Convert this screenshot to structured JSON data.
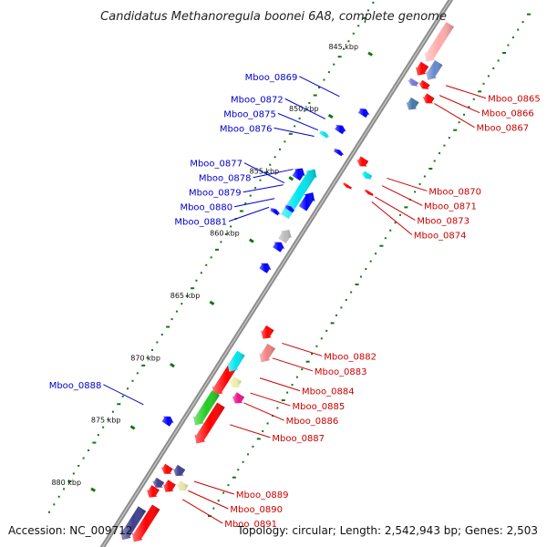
{
  "title": "Candidatus Methanoregula boonei 6A8, complete genome",
  "footer": {
    "accession": "Accession: NC_009712",
    "topology": "Topology: circular; Length: 2,542,943 bp; Genes: 2,503"
  },
  "colors": {
    "forward_label": "#cc0000",
    "reverse_label": "#0000cc",
    "backbone": "#8c8c8c",
    "gc_dots": "#117711"
  },
  "ruler": [
    {
      "label": "845 kbp",
      "kbp": 845
    },
    {
      "label": "850 kbp",
      "kbp": 850
    },
    {
      "label": "855 kbp",
      "kbp": 855
    },
    {
      "label": "860 kbp",
      "kbp": 860
    },
    {
      "label": "865 kbp",
      "kbp": 865
    },
    {
      "label": "870 kbp",
      "kbp": 870
    },
    {
      "label": "875 kbp",
      "kbp": 875
    },
    {
      "label": "880 kbp",
      "kbp": 880
    }
  ],
  "forward_genes": [
    {
      "name": "Mboo_0865",
      "start": 843.6,
      "end": 844.5,
      "color": "#ff0000"
    },
    {
      "name": "Mboo_0866",
      "start": 844.6,
      "end": 845.1,
      "color": "#ff0000"
    },
    {
      "name": "Mboo_0867",
      "start": 845.2,
      "end": 845.8,
      "color": "#ff0000"
    },
    {
      "name": "Mboo_0870",
      "start": 851.2,
      "end": 851.8,
      "color": "#ff0000"
    },
    {
      "name": "Mboo_0871",
      "start": 851.9,
      "end": 852.3,
      "color": "#00e5ee"
    },
    {
      "name": "Mboo_0873",
      "start": 852.9,
      "end": 853.1,
      "color": "#ff0000"
    },
    {
      "name": "Mboo_0874",
      "start": 853.3,
      "end": 853.5,
      "color": "#ff0000"
    },
    {
      "name": "Mboo_0882",
      "start": 864.3,
      "end": 865.2,
      "color": "#ff0000"
    },
    {
      "name": "Mboo_0883",
      "start": 865.3,
      "end": 866.6,
      "color": "#f08080"
    },
    {
      "name": "Mboo_0884",
      "start": 866.8,
      "end": 868.3,
      "color": "#00e5ee"
    },
    {
      "name": "Mboo_0885",
      "start": 868.4,
      "end": 869.1,
      "color": "#eeeeaa"
    },
    {
      "name": "Mboo_0886",
      "start": 869.2,
      "end": 869.9,
      "color": "#ee1289"
    },
    {
      "name": "Mboo_0887",
      "start": 870.0,
      "end": 872.6,
      "color": "#22cc22"
    },
    {
      "name": "Mboo_0889",
      "start": 875.5,
      "end": 876.2,
      "color": "#3e3e8e"
    },
    {
      "name": "Mboo_0890",
      "start": 876.3,
      "end": 876.9,
      "color": "#e6e6aa"
    },
    {
      "name": "Mboo_0891",
      "start": 877.0,
      "end": 877.6,
      "color": "#3e3e8e"
    }
  ],
  "reverse_genes": [
    {
      "name": "Mboo_0869",
      "start": 848.3,
      "end": 848.8,
      "color": "#0000ff"
    },
    {
      "name": "Mboo_0872",
      "start": 850.1,
      "end": 850.6,
      "color": "#0000ff"
    },
    {
      "name": "Mboo_0875",
      "start": 851.1,
      "end": 851.4,
      "color": "#00e5ee"
    },
    {
      "name": "Mboo_0876",
      "start": 851.6,
      "end": 851.9,
      "color": "#0000ff"
    },
    {
      "name": "Mboo_0877",
      "start": 853.6,
      "end": 857.4,
      "color": "#00e5ee"
    },
    {
      "name": "Mboo_0878",
      "start": 854.0,
      "end": 854.8,
      "color": "#0000ff"
    },
    {
      "name": "Mboo_0879",
      "start": 855.0,
      "end": 856.3,
      "color": "#0000ff"
    },
    {
      "name": "Mboo_0880",
      "start": 856.6,
      "end": 856.9,
      "color": "#0000ff"
    },
    {
      "name": "Mboo_0881",
      "start": 857.3,
      "end": 857.6,
      "color": "#0000ff"
    },
    {
      "name": "Mboo_0888",
      "start": 873.0,
      "end": 873.6,
      "color": "#0000ff"
    }
  ],
  "unlabeled_features": [
    {
      "strand": "forward",
      "start": 840.4,
      "end": 843.4,
      "color": "#ffaaaa"
    },
    {
      "strand": "forward",
      "start": 843.0,
      "end": 844.4,
      "color": "#6688cc"
    },
    {
      "strand": "forward",
      "start": 844.9,
      "end": 845.3,
      "color": "#7777dd"
    },
    {
      "strand": "forward",
      "start": 846.0,
      "end": 846.8,
      "color": "#4477aa"
    },
    {
      "strand": "forward",
      "start": 867.2,
      "end": 870.2,
      "color": "#ff0000"
    },
    {
      "strand": "forward",
      "start": 870.5,
      "end": 873.6,
      "color": "#ff0000"
    },
    {
      "strand": "forward",
      "start": 875.9,
      "end": 876.5,
      "color": "#ff0000"
    },
    {
      "strand": "forward",
      "start": 876.7,
      "end": 877.5,
      "color": "#ff0000"
    },
    {
      "strand": "forward",
      "start": 877.6,
      "end": 878.4,
      "color": "#ff0000"
    },
    {
      "strand": "forward",
      "start": 878.7,
      "end": 881.5,
      "color": "#ff0000"
    },
    {
      "strand": "forward",
      "start": 879.3,
      "end": 881.8,
      "color": "#3e3e8e"
    },
    {
      "strand": "reverse",
      "start": 858.0,
      "end": 858.9,
      "color": "#bbbbbb"
    },
    {
      "strand": "reverse",
      "start": 859.0,
      "end": 859.6,
      "color": "#0000ff"
    },
    {
      "strand": "reverse",
      "start": 860.7,
      "end": 861.3,
      "color": "#0000ff"
    }
  ]
}
